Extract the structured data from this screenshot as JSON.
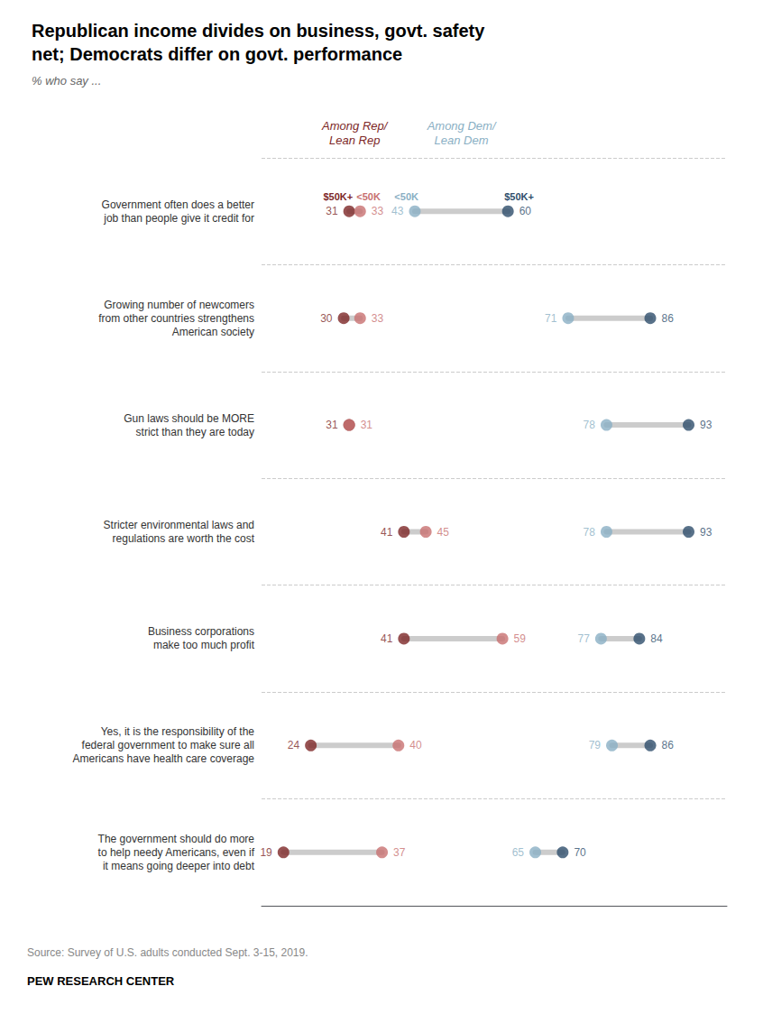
{
  "chart_data": {
    "type": "dumbbell",
    "title": "Republican income divides on business, govt. safety\nnet; Democrats differ on govt. performance",
    "subtitle": "% who say ...",
    "categories": [
      "Government often does a better\njob than people give it credit for",
      "Growing number of newcomers\nfrom other countries strengthens\nAmerican society",
      "Gun laws should be MORE\nstrict than they are today",
      "Stricter environmental laws and\nregulations are worth the cost",
      "Business corporations\nmake too much profit",
      "Yes, it is the responsibility of the\nfederal government to make sure all\nAmericans have health care coverage",
      "The government should do more\nto help needy Americans, even if\nit means going deeper into debt"
    ],
    "series": [
      {
        "name": "$50K+",
        "color": "#7d2727",
        "values": [
          31,
          30,
          31,
          41,
          41,
          24,
          19
        ]
      },
      {
        "name": "<50K",
        "color": "#c87070",
        "values": [
          33,
          33,
          31,
          45,
          59,
          40,
          37
        ]
      },
      {
        "name": "<50K",
        "color": "#8aafc4",
        "values": [
          43,
          71,
          78,
          78,
          77,
          79,
          65
        ]
      },
      {
        "name": "$50K+",
        "color": "#2e4d6b",
        "values": [
          60,
          86,
          93,
          93,
          84,
          86,
          70
        ]
      }
    ],
    "xlim": [
      15,
      100
    ],
    "tick_labels": "y",
    "grid": true,
    "data_labels": true,
    "annotations": [
      "Among Rep/\nLean Rep",
      "Among Dem/\nLean Dem",
      "Source: Survey of U.S. adults conducted Sept. 3-15, 2019.",
      "PEW RESEARCH CENTER"
    ]
  }
}
